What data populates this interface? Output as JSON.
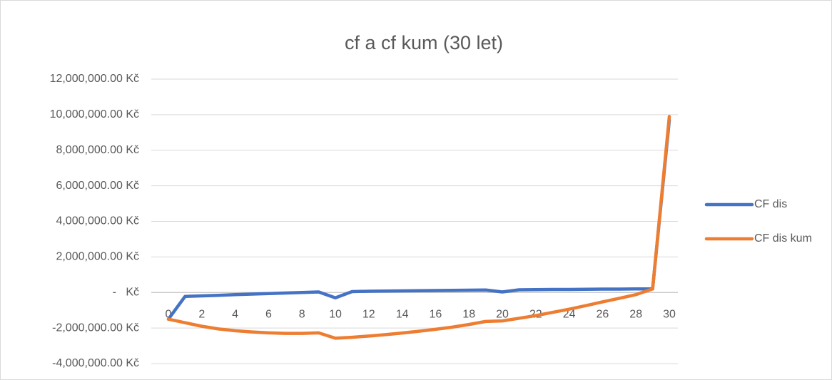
{
  "chart_data": {
    "type": "line",
    "title": "cf a cf kum (30 let)",
    "categories": [
      0,
      null,
      2,
      null,
      4,
      null,
      6,
      null,
      8,
      null,
      10,
      null,
      12,
      null,
      14,
      null,
      16,
      null,
      18,
      null,
      20,
      null,
      22,
      null,
      24,
      null,
      26,
      null,
      28,
      null,
      30
    ],
    "series": [
      {
        "name": "CF dis",
        "color": "#4472c4",
        "values": [
          -1500000,
          -220000,
          -190000,
          -160000,
          -120000,
          -90000,
          -60000,
          -30000,
          0,
          30000,
          -300000,
          50000,
          70000,
          80000,
          90000,
          100000,
          110000,
          120000,
          130000,
          140000,
          30000,
          150000,
          160000,
          170000,
          170000,
          180000,
          190000,
          190000,
          200000,
          200000,
          9700000
        ]
      },
      {
        "name": "CF dis kum",
        "color": "#ed7d31",
        "values": [
          -1500000,
          -1700000,
          -1900000,
          -2050000,
          -2150000,
          -2220000,
          -2270000,
          -2300000,
          -2300000,
          -2270000,
          -2570000,
          -2520000,
          -2450000,
          -2370000,
          -2280000,
          -2180000,
          -2070000,
          -1950000,
          -1800000,
          -1630000,
          -1600000,
          -1450000,
          -1300000,
          -1120000,
          -940000,
          -740000,
          -530000,
          -330000,
          -120000,
          200000,
          9900000
        ]
      }
    ],
    "ylim": [
      -4000000,
      12000000
    ],
    "yticks": [
      {
        "value": -4000000,
        "label": "-4,000,000.00 Kč"
      },
      {
        "value": -2000000,
        "label": "-2,000,000.00 Kč"
      },
      {
        "value": 0,
        "label": "-   Kč"
      },
      {
        "value": 2000000,
        "label": "2,000,000.00 Kč"
      },
      {
        "value": 4000000,
        "label": "4,000,000.00 Kč"
      },
      {
        "value": 6000000,
        "label": "6,000,000.00 Kč"
      },
      {
        "value": 8000000,
        "label": "8,000,000.00 Kč"
      },
      {
        "value": 10000000,
        "label": "10,000,000.00 Kč"
      },
      {
        "value": 12000000,
        "label": "12,000,000.00 Kč"
      }
    ],
    "grid": true,
    "legend": "right"
  }
}
